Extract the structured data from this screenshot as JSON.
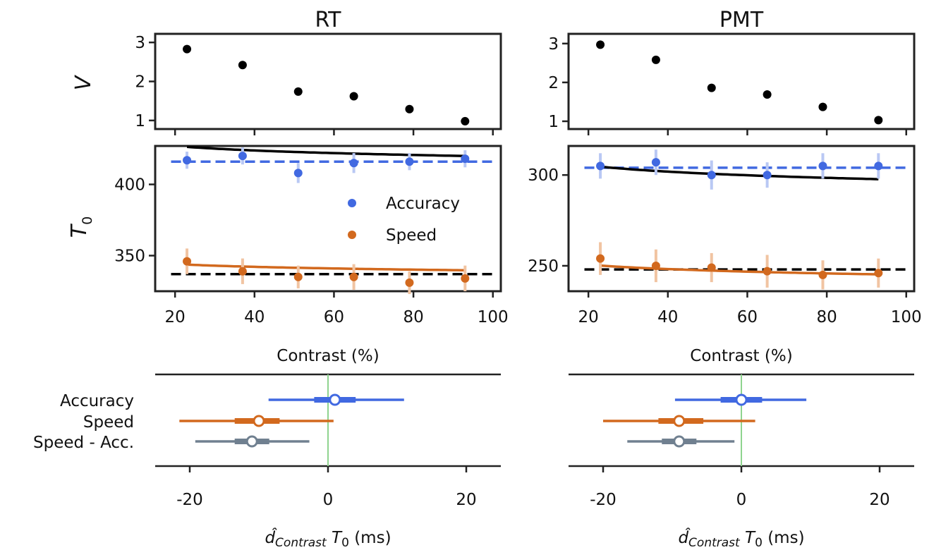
{
  "colors": {
    "accuracy": "#4169e1",
    "speed": "#d2691e",
    "speed_minus_acc": "#708090",
    "points": "#000000",
    "zero_line": "#8fd48f"
  },
  "panels": {
    "rt": {
      "title": "RT"
    },
    "pmt": {
      "title": "PMT"
    }
  },
  "labels": {
    "v_ylabel": "V",
    "t0_ylabel_main": "T",
    "t0_ylabel_sub": "0",
    "contrast_xlabel": "Contrast (%)",
    "effect_xlabel_d": "d̂",
    "effect_xlabel_sub": "Contrast",
    "effect_xlabel_t": "T",
    "effect_xlabel_t_sub": "0",
    "effect_xlabel_units": "(ms)"
  },
  "legend": [
    {
      "label": "Accuracy",
      "color": "#4169e1"
    },
    {
      "label": "Speed",
      "color": "#d2691e"
    }
  ],
  "chart_data": [
    {
      "panel": "RT",
      "row": "V",
      "type": "scatter",
      "title": "RT",
      "ylabel": "V",
      "yticks": [
        1,
        2,
        3
      ],
      "ylim": [
        0.78,
        3.22
      ],
      "xlim": [
        15,
        102
      ],
      "x": [
        23,
        37,
        51,
        65,
        79,
        93
      ],
      "y": [
        2.83,
        2.42,
        1.74,
        1.62,
        1.29,
        0.98
      ],
      "err": [
        0.03,
        0.05,
        0.07,
        0.04,
        0.04,
        0.07
      ]
    },
    {
      "panel": "PMT",
      "row": "V",
      "type": "scatter",
      "title": "PMT",
      "ylabel": "V",
      "yticks": [
        1,
        2,
        3
      ],
      "ylim": [
        0.8,
        3.25
      ],
      "xlim": [
        15,
        102
      ],
      "x": [
        23,
        37,
        51,
        65,
        79,
        93
      ],
      "y": [
        2.97,
        2.58,
        1.86,
        1.69,
        1.37,
        1.03
      ],
      "err": [
        0.04,
        0.06,
        0.08,
        0.05,
        0.05,
        0.06
      ]
    },
    {
      "panel": "RT",
      "row": "T0",
      "type": "scatter",
      "ylabel": "T0",
      "xlabel": "Contrast (%)",
      "xticks": [
        20,
        40,
        60,
        80,
        100
      ],
      "yticks": [
        350,
        400
      ],
      "xlim": [
        15,
        102
      ],
      "ylim": [
        325,
        427
      ],
      "series": [
        {
          "name": "Accuracy",
          "x": [
            23,
            37,
            51,
            65,
            79,
            93
          ],
          "y": [
            417,
            420,
            408,
            415,
            416,
            418
          ],
          "err": [
            6,
            6,
            7,
            7,
            6,
            6
          ],
          "reference": 416,
          "fit": {
            "a": 440.65,
            "b": -4.56
          }
        },
        {
          "name": "Speed",
          "x": [
            23,
            37,
            51,
            65,
            79,
            93
          ],
          "y": [
            346,
            339,
            335,
            335,
            331,
            334
          ],
          "err": [
            9,
            9,
            8,
            9,
            8,
            9
          ],
          "reference": 337,
          "fit": {
            "a": 352.6,
            "b": -2.84
          }
        }
      ]
    },
    {
      "panel": "PMT",
      "row": "T0",
      "type": "scatter",
      "xlabel": "Contrast (%)",
      "xticks": [
        20,
        40,
        60,
        80,
        100
      ],
      "yticks": [
        250,
        300
      ],
      "xlim": [
        15,
        102
      ],
      "ylim": [
        236,
        316
      ],
      "series": [
        {
          "name": "Accuracy",
          "x": [
            23,
            37,
            51,
            65,
            79,
            93
          ],
          "y": [
            305,
            307,
            300,
            300,
            305,
            305
          ],
          "err": [
            7,
            7,
            8,
            7,
            7,
            7
          ],
          "reference": 304,
          "fit": {
            "a": 320.01,
            "b": -4.92
          }
        },
        {
          "name": "Speed",
          "x": [
            23,
            37,
            51,
            65,
            79,
            93
          ],
          "y": [
            254,
            250,
            249,
            247,
            245,
            246
          ],
          "err": [
            9,
            9,
            8,
            9,
            8,
            8
          ],
          "reference": 248,
          "fit": {
            "a": 261.0,
            "b": -3.47
          }
        }
      ]
    },
    {
      "panel": "RT",
      "row": "effect",
      "type": "forest",
      "xticks": [
        -20,
        0,
        20
      ],
      "xlim": [
        -25,
        25
      ],
      "categories": [
        "Accuracy",
        "Speed",
        "Speed - Acc."
      ],
      "point": [
        1,
        -10,
        -11
      ],
      "inner": [
        [
          -2,
          4
        ],
        [
          -13.5,
          -7
        ],
        [
          -13.5,
          -8.5
        ]
      ],
      "outer": [
        [
          -8.6,
          11
        ],
        [
          -21.5,
          0.8
        ],
        [
          -19.2,
          -2.7
        ]
      ]
    },
    {
      "panel": "PMT",
      "row": "effect",
      "type": "forest",
      "xticks": [
        -20,
        0,
        20
      ],
      "xlim": [
        -25,
        25
      ],
      "categories": [
        "Accuracy",
        "Speed",
        "Speed - Acc."
      ],
      "point": [
        0,
        -9,
        -9
      ],
      "inner": [
        [
          -3,
          3
        ],
        [
          -12,
          -5.5
        ],
        [
          -11.5,
          -6.5
        ]
      ],
      "outer": [
        [
          -9.6,
          9.4
        ],
        [
          -20,
          2
        ],
        [
          -16.5,
          -1
        ]
      ]
    }
  ]
}
